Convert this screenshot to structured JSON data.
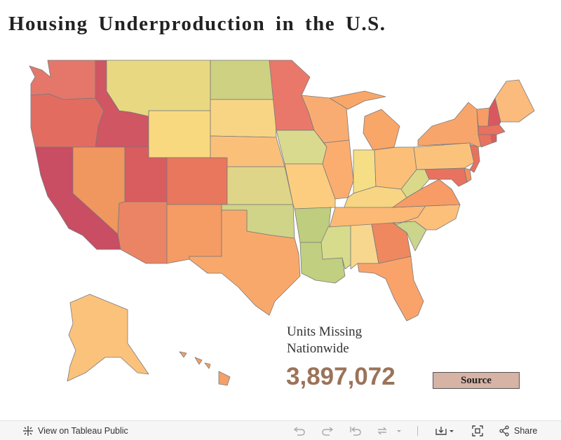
{
  "title": "Housing Underproduction in the U.S.",
  "stat": {
    "label_line1": "Units Missing",
    "label_line2": "Nationwide",
    "value": "3,897,072",
    "value_color": "#9c7359"
  },
  "source_button": {
    "label": "Source",
    "bg": "#d6b3a5"
  },
  "toolbar": {
    "view_label": "View on Tableau Public",
    "share_label": "Share",
    "icons": [
      "tableau-logo-icon",
      "undo-icon",
      "redo-icon",
      "revert-icon",
      "refresh-icon",
      "dropdown-icon",
      "download-icon",
      "fullscreen-icon",
      "share-icon"
    ]
  },
  "map": {
    "legend": "none shown; color encodes relative underproduction (green = lower, red = higher)",
    "colors": {
      "WA": "#e4776a",
      "OR": "#e26c60",
      "CA": "#c94d63",
      "ID": "#cf5662",
      "NV": "#f0965f",
      "MT": "#e8d882",
      "WY": "#f8d980",
      "UT": "#d95d5f",
      "AZ": "#eb8464",
      "CO": "#e8775e",
      "NM": "#f59b64",
      "ND": "#cfd182",
      "SD": "#f8d584",
      "NE": "#fac07a",
      "KS": "#dfd589",
      "OK": "#cfd488",
      "TX": "#f9a86c",
      "MN": "#e9786a",
      "IA": "#d9da8e",
      "MO": "#fdcd7f",
      "AR": "#bfcd7e",
      "LA": "#c0d080",
      "WI": "#f9ac72",
      "IL": "#fbad70",
      "MI": "#f9a669",
      "IN": "#f6de86",
      "OH": "#fbbf77",
      "KY": "#f7d582",
      "TN": "#fbb975",
      "MS": "#d6dc8c",
      "AL": "#f7d68d",
      "GA": "#ef885f",
      "FL": "#f9a36b",
      "SC": "#cbd58b",
      "NC": "#fcc07b",
      "VA": "#f79c66",
      "WV": "#dad989",
      "PA": "#fbc27c",
      "NY": "#f8a56b",
      "NJ": "#e8715e",
      "DE": "#f48f60",
      "MD": "#e8725f",
      "CT": "#e8725f",
      "RI": "#e15b5c",
      "MA": "#e8725f",
      "VT": "#f79c66",
      "NH": "#d9585f",
      "ME": "#fbbb7c",
      "AK": "#fbc27c",
      "HI": "#f4a066"
    }
  }
}
